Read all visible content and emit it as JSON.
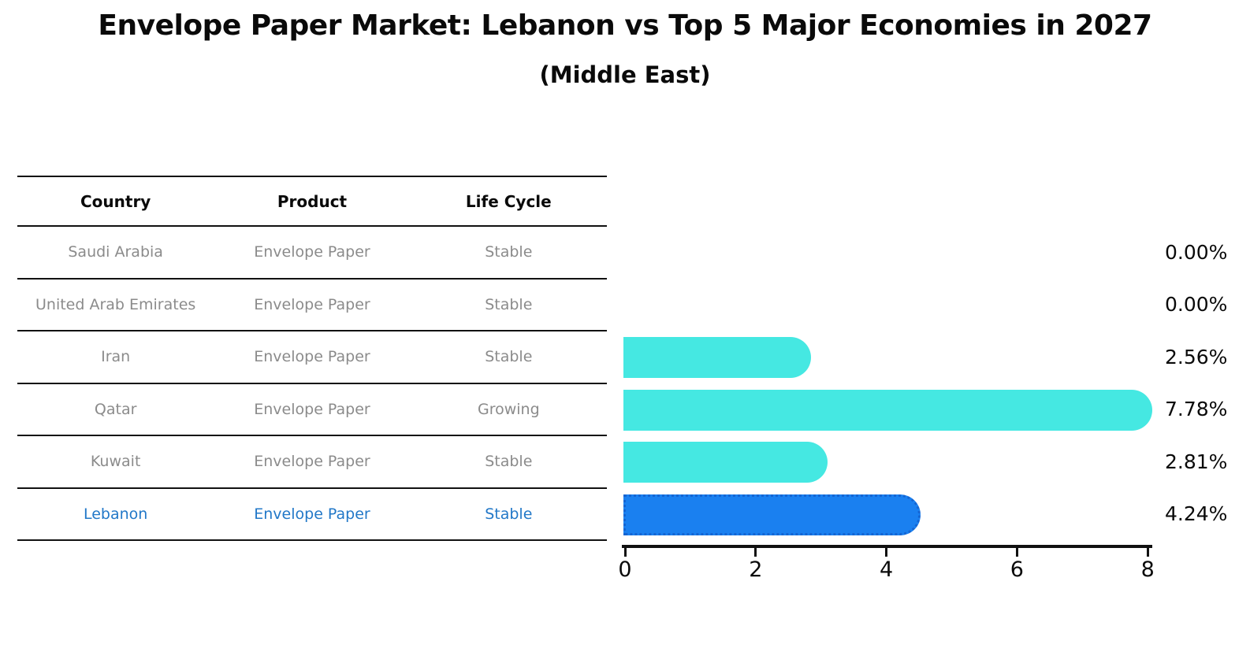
{
  "header": {
    "title": "Envelope Paper Market: Lebanon vs Top 5 Major Economies in 2027",
    "subtitle": "(Middle East)"
  },
  "table": {
    "columns": [
      "Country",
      "Product",
      "Life Cycle"
    ],
    "rows": [
      {
        "country": "Saudi Arabia",
        "product": "Envelope Paper",
        "life_cycle": "Stable",
        "highlight": false
      },
      {
        "country": "United Arab Emirates",
        "product": "Envelope Paper",
        "life_cycle": "Stable",
        "highlight": false
      },
      {
        "country": "Iran",
        "product": "Envelope Paper",
        "life_cycle": "Stable",
        "highlight": false
      },
      {
        "country": "Qatar",
        "product": "Envelope Paper",
        "life_cycle": "Growing",
        "highlight": false
      },
      {
        "country": "Kuwait",
        "product": "Envelope Paper",
        "life_cycle": "Stable",
        "highlight": false
      },
      {
        "country": "Lebanon",
        "product": "Envelope Paper",
        "life_cycle": "Stable",
        "highlight": true
      }
    ]
  },
  "chart_data": {
    "type": "bar",
    "orientation": "horizontal",
    "title": "Envelope Paper Market: Lebanon vs Top 5 Major Economies in 2027",
    "subtitle": "(Middle East)",
    "categories": [
      "Saudi Arabia",
      "United Arab Emirates",
      "Iran",
      "Qatar",
      "Kuwait",
      "Lebanon"
    ],
    "values": [
      0.0,
      0.0,
      2.56,
      7.78,
      2.81,
      4.24
    ],
    "bar_labels": [
      "0.00%",
      "0.00%",
      "2.56%",
      "7.78%",
      "2.81%",
      "4.24%"
    ],
    "xticks": [
      "0",
      "2",
      "4",
      "6",
      "8"
    ],
    "xlim": [
      0,
      8
    ],
    "grid": false,
    "legend": false,
    "bar_color": "#45e8e2",
    "highlight_index": 5,
    "highlight_color": "#1a80f0",
    "highlight_border_color": "#1565d2",
    "text_color": "#8b8b8b",
    "highlight_text_color": "#2278c8"
  }
}
